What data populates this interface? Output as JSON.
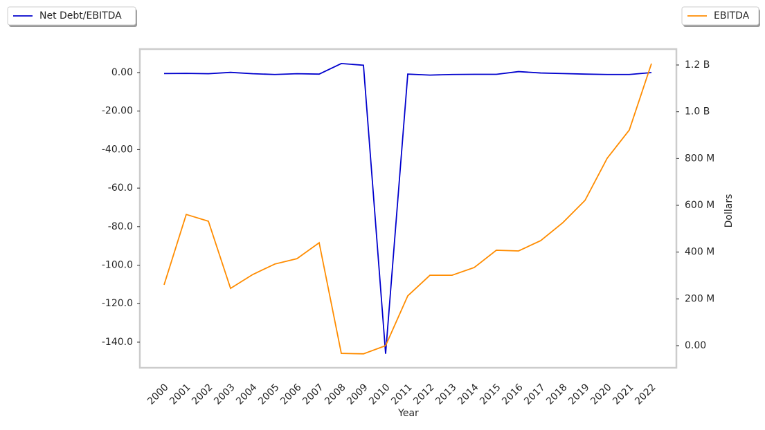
{
  "chart_data": {
    "type": "line",
    "x_label": "Year",
    "y2_label": "Dollars",
    "categories": [
      "2000",
      "2001",
      "2002",
      "2003",
      "2004",
      "2005",
      "2006",
      "2007",
      "2008",
      "2009",
      "2010",
      "2011",
      "2012",
      "2013",
      "2014",
      "2015",
      "2016",
      "2017",
      "2018",
      "2019",
      "2020",
      "2021",
      "2022"
    ],
    "series": [
      {
        "name": "Net Debt/EBITDA",
        "color": "#0000cd",
        "axis": "y",
        "values": [
          -0.5,
          -0.4,
          -0.6,
          0.1,
          -0.6,
          -1,
          -0.6,
          -0.8,
          4.7,
          3.8,
          -146,
          -0.8,
          -1.3,
          -1,
          -0.9,
          -0.9,
          0.5,
          -0.2,
          -0.5,
          -0.8,
          -1,
          -1,
          0
        ]
      },
      {
        "name": "EBITDA",
        "color": "#ff8c00",
        "axis": "y2",
        "values": [
          260000000,
          561000000,
          532000000,
          245000000,
          304000000,
          349000000,
          372000000,
          440000000,
          -33000000,
          -35000000,
          0,
          213000000,
          301000000,
          301000000,
          334000000,
          408000000,
          405000000,
          449000000,
          526000000,
          621000000,
          801000000,
          922000000,
          1206000000
        ]
      }
    ],
    "ylim": [
      -153.3,
      12.2
    ],
    "yticks": [
      {
        "value": 0,
        "label": "0.00"
      },
      {
        "value": -20,
        "label": "-20.00"
      },
      {
        "value": -40,
        "label": "-40.00"
      },
      {
        "value": -60,
        "label": "-60.0"
      },
      {
        "value": -80,
        "label": "-80.0"
      },
      {
        "value": -100,
        "label": "-100.0"
      },
      {
        "value": -120,
        "label": "-120.0"
      },
      {
        "value": -140,
        "label": "-140.0"
      }
    ],
    "y2lim": [
      -94600000,
      1268000000
    ],
    "y2ticks": [
      {
        "value": 0,
        "label": "0.00"
      },
      {
        "value": 200000000,
        "label": "200 M"
      },
      {
        "value": 400000000,
        "label": "400 M"
      },
      {
        "value": 600000000,
        "label": "600 M"
      },
      {
        "value": 800000000,
        "label": "800 M"
      },
      {
        "value": 1000000000,
        "label": "1.0 B"
      },
      {
        "value": 1200000000,
        "label": "1.2 B"
      }
    ],
    "grid": false
  }
}
